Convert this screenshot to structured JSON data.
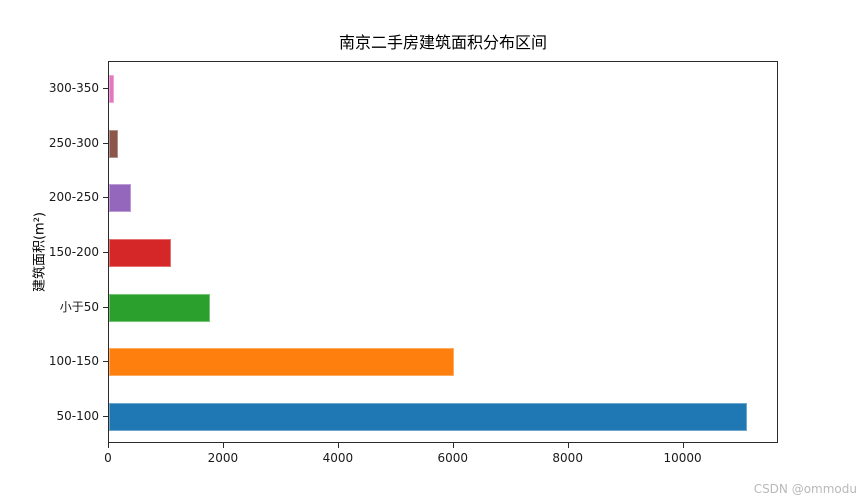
{
  "watermark": "CSDN @ommodu",
  "chart_data": {
    "type": "bar",
    "orientation": "horizontal",
    "title": "南京二手房建筑面积分布区间",
    "xlabel": "",
    "ylabel": "建筑面积(m²)",
    "categories_top_to_bottom": [
      "300-350",
      "250-300",
      "200-250",
      "150-200",
      "小于50",
      "100-150",
      "50-100"
    ],
    "values": [
      90,
      160,
      385,
      1080,
      1750,
      6000,
      11100
    ],
    "colors": [
      "#e377c2",
      "#8c564b",
      "#9467bd",
      "#d62728",
      "#2ca02c",
      "#ff7f0e",
      "#1f77b4"
    ],
    "x_ticks": [
      0,
      2000,
      4000,
      6000,
      8000,
      10000
    ],
    "xlim": [
      0,
      11660
    ],
    "grid": false,
    "legend": null,
    "spine_color": "#2b2b2b"
  }
}
